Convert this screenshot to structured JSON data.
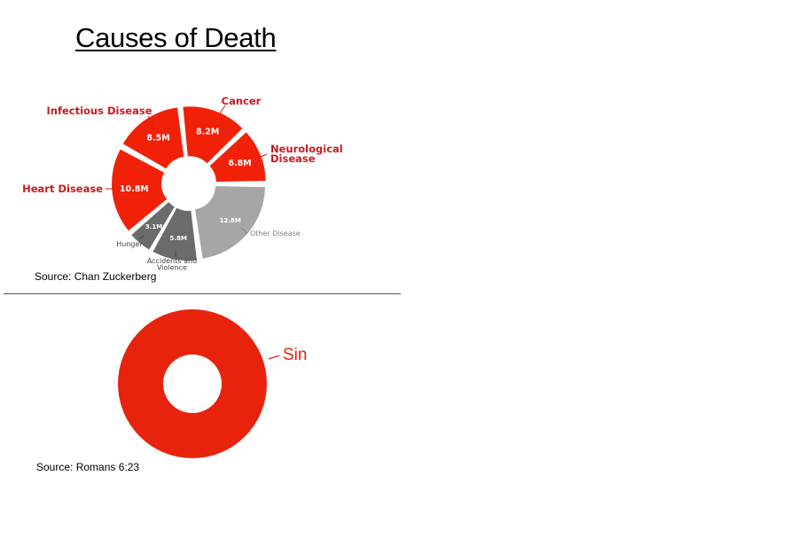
{
  "title": "Causes of Death",
  "divider": true,
  "colors": {
    "red": "#f12108",
    "red_label": "#c91a1f",
    "dark_gray": "#6b6b6b",
    "light_gray": "#a6a6a6",
    "sin_red": "#e8230d",
    "gray_label": "#555555"
  },
  "chart_data": [
    {
      "type": "pie",
      "style": "donut, exploded wedges",
      "title": "",
      "slices": [
        {
          "label": "Other Disease",
          "value": 12.8,
          "value_label": "12.8M",
          "color": "#a6a6a6"
        },
        {
          "label": "Accidents and Violence",
          "value": 5.8,
          "value_label": "5.8M",
          "color": "#6b6b6b"
        },
        {
          "label": "Hunger",
          "value": 3.1,
          "value_label": "3.1M",
          "color": "#6b6b6b"
        },
        {
          "label": "Heart Disease",
          "value": 10.8,
          "value_label": "10.8M",
          "color": "#f12108"
        },
        {
          "label": "Infectious Disease",
          "value": 8.5,
          "value_label": "8.5M",
          "color": "#f12108"
        },
        {
          "label": "Cancer",
          "value": 8.2,
          "value_label": "8.2M",
          "color": "#f12108"
        },
        {
          "label": "Neurological Disease",
          "value": 6.8,
          "value_label": "6.8M",
          "color": "#f12108"
        }
      ],
      "source": "Source: Chan Zuckerberg"
    },
    {
      "type": "pie",
      "style": "donut",
      "title": "",
      "slices": [
        {
          "label": "Sin",
          "value": 100,
          "color": "#e8230d"
        }
      ],
      "source": "Source: Romans 6:23"
    }
  ]
}
